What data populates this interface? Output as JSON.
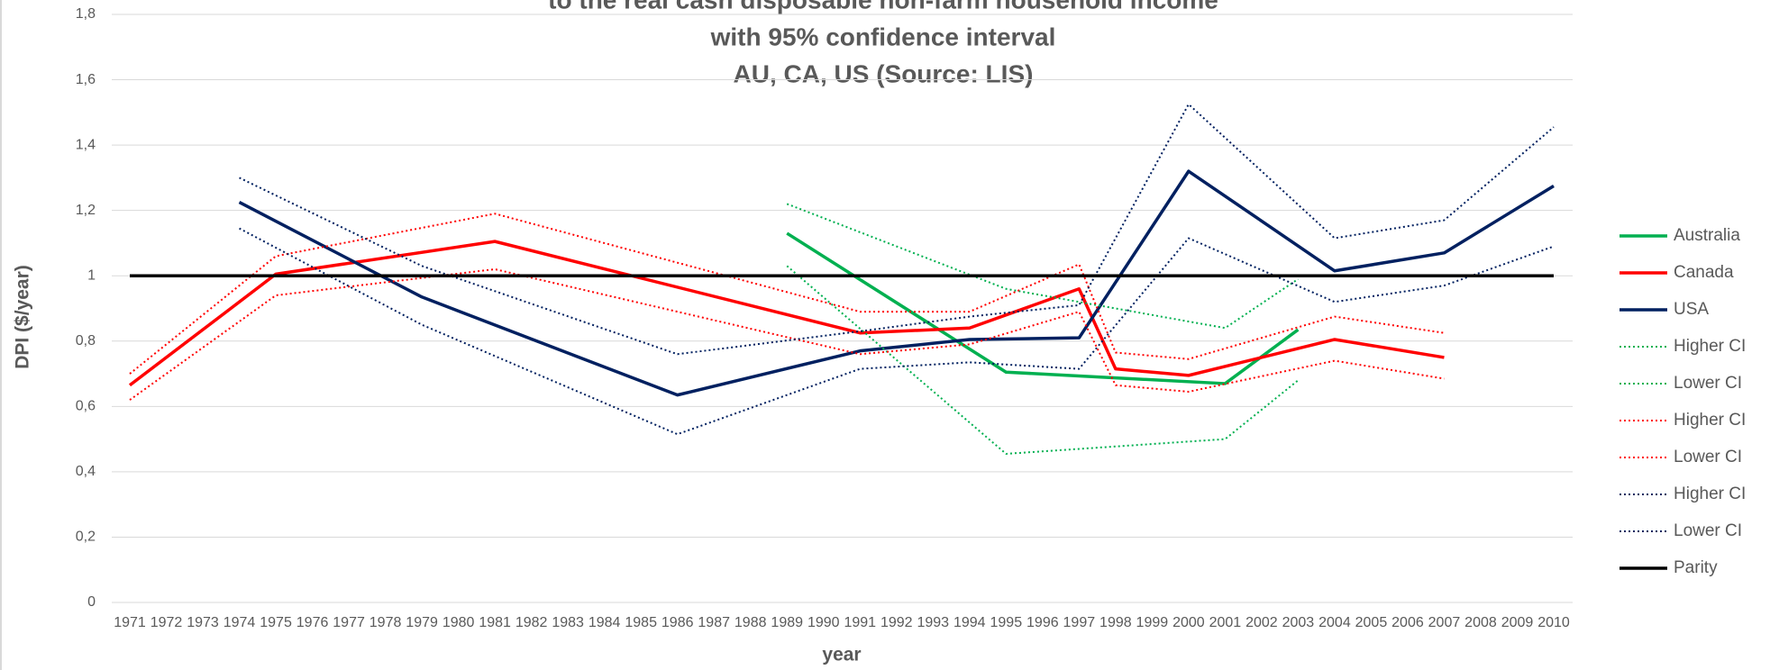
{
  "chart_data": {
    "type": "line",
    "title_lines": [
      "to the real cash disposable non-farm household income",
      "with 95% confidence interval",
      "AU, CA, US (Source: LIS)"
    ],
    "x_label": "year",
    "y_label": "DPI ($/year)",
    "xlim": [
      1971,
      2010
    ],
    "xticks": [
      1971,
      1972,
      1973,
      1974,
      1975,
      1976,
      1977,
      1978,
      1979,
      1980,
      1981,
      1982,
      1983,
      1984,
      1985,
      1986,
      1987,
      1988,
      1989,
      1990,
      1991,
      1992,
      1993,
      1994,
      1995,
      1996,
      1997,
      1998,
      1999,
      2000,
      2001,
      2002,
      2003,
      2004,
      2005,
      2006,
      2007,
      2008,
      2009,
      2010
    ],
    "ylim": [
      0,
      1.8
    ],
    "yticks": [
      0,
      {
        "value": 0.2,
        "label": "0,2"
      },
      {
        "value": 0.4,
        "label": "0,4"
      },
      {
        "value": 0.6,
        "label": "0,6"
      },
      {
        "value": 0.8,
        "label": "0,8"
      },
      1,
      {
        "value": 1.2,
        "label": "1,2"
      },
      {
        "value": 1.4,
        "label": "1,4"
      },
      {
        "value": 1.6,
        "label": "1,6"
      },
      {
        "value": 1.8,
        "label": "1,8"
      }
    ],
    "grid": true,
    "legend": "right",
    "series": [
      {
        "name": "Australia",
        "color": "#00b050",
        "style": "solid",
        "x": [
          1989,
          1995,
          2001,
          2003
        ],
        "values": [
          1.13,
          0.705,
          0.67,
          0.835
        ]
      },
      {
        "name": "Canada",
        "color": "#ff0000",
        "style": "solid",
        "x": [
          1971,
          1975,
          1981,
          1991,
          1994,
          1997,
          1998,
          2000,
          2004,
          2007
        ],
        "values": [
          0.665,
          1.005,
          1.105,
          0.825,
          0.84,
          0.96,
          0.715,
          0.695,
          0.805,
          0.75
        ]
      },
      {
        "name": "USA",
        "color": "#002060",
        "style": "solid",
        "x": [
          1974,
          1979,
          1986,
          1991,
          1994,
          1997,
          2000,
          2004,
          2007,
          2010
        ],
        "values": [
          1.225,
          0.935,
          0.635,
          0.77,
          0.805,
          0.81,
          1.32,
          1.015,
          1.07,
          1.275
        ]
      },
      {
        "name": "Higher CI",
        "color": "#00b050",
        "style": "dotted",
        "x": [
          1989,
          1995,
          2001,
          2003
        ],
        "values": [
          1.22,
          0.96,
          0.84,
          0.99
        ]
      },
      {
        "name": "Lower CI",
        "color": "#00b050",
        "style": "dotted",
        "x": [
          1989,
          1995,
          2001,
          2003
        ],
        "values": [
          1.03,
          0.455,
          0.5,
          0.68
        ]
      },
      {
        "name": "Higher CI",
        "color": "#ff0000",
        "style": "dotted",
        "x": [
          1971,
          1975,
          1981,
          1991,
          1994,
          1997,
          1998,
          2000,
          2004,
          2007
        ],
        "values": [
          0.7,
          1.06,
          1.19,
          0.89,
          0.89,
          1.035,
          0.765,
          0.745,
          0.875,
          0.825
        ]
      },
      {
        "name": "Lower CI",
        "color": "#ff0000",
        "style": "dotted",
        "x": [
          1971,
          1975,
          1981,
          1991,
          1994,
          1997,
          1998,
          2000,
          2004,
          2007
        ],
        "values": [
          0.62,
          0.94,
          1.02,
          0.76,
          0.79,
          0.89,
          0.665,
          0.645,
          0.74,
          0.685
        ]
      },
      {
        "name": "Higher CI",
        "color": "#002060",
        "style": "dotted",
        "x": [
          1974,
          1979,
          1986,
          1991,
          1994,
          1997,
          2000,
          2004,
          2007,
          2010
        ],
        "values": [
          1.3,
          1.03,
          0.76,
          0.83,
          0.875,
          0.91,
          1.525,
          1.115,
          1.17,
          1.455
        ]
      },
      {
        "name": "Lower CI",
        "color": "#002060",
        "style": "dotted",
        "x": [
          1974,
          1979,
          1986,
          1991,
          1994,
          1997,
          2000,
          2004,
          2007,
          2010
        ],
        "values": [
          1.145,
          0.85,
          0.515,
          0.715,
          0.735,
          0.715,
          1.115,
          0.92,
          0.97,
          1.09
        ]
      },
      {
        "name": "Parity",
        "color": "#000000",
        "style": "solid",
        "x": [
          1971,
          2010
        ],
        "values": [
          1,
          1
        ]
      }
    ]
  }
}
